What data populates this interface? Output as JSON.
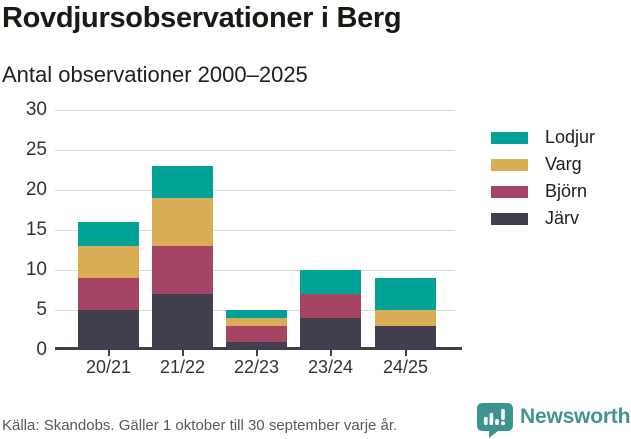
{
  "header": {
    "title": "Rovdjursobservationer i Berg",
    "subtitle": "Antal observationer 2000–2025"
  },
  "chart_data": {
    "type": "bar",
    "stacked": true,
    "title": "Rovdjursobservationer i Berg",
    "subtitle": "Antal observationer 2000–2025",
    "categories": [
      "20/21",
      "21/22",
      "22/23",
      "23/24",
      "24/25"
    ],
    "series": [
      {
        "name": "Järv",
        "color": "#413f4d",
        "values": [
          5,
          7,
          1,
          4,
          3
        ]
      },
      {
        "name": "Björn",
        "color": "#a64465",
        "values": [
          4,
          6,
          2,
          3,
          0
        ]
      },
      {
        "name": "Varg",
        "color": "#d9ad56",
        "values": [
          4,
          6,
          1,
          0,
          2
        ]
      },
      {
        "name": "Lodjur",
        "color": "#00a295",
        "values": [
          3,
          4,
          1,
          3,
          4
        ]
      }
    ],
    "stack_order": "bottom-to-top",
    "totals": [
      16,
      23,
      5,
      10,
      9
    ],
    "legend": [
      "Lodjur",
      "Varg",
      "Björn",
      "Järv"
    ],
    "legend_position": "right",
    "xlabel": "",
    "ylabel": "",
    "ylim": [
      0,
      30
    ],
    "yticks": [
      0,
      5,
      10,
      15,
      20,
      25,
      30
    ],
    "grid": true,
    "grid_color": "#dcdcdc",
    "axis_color": "#3f3e4d"
  },
  "footer": {
    "source": "Källa: Skandobs. Gäller 1 oktober till 30 september varje år.",
    "brand": "Newsworthy",
    "brand_color": "#44938f",
    "logo_icon": "bar-chart-speech-bubble-icon"
  }
}
